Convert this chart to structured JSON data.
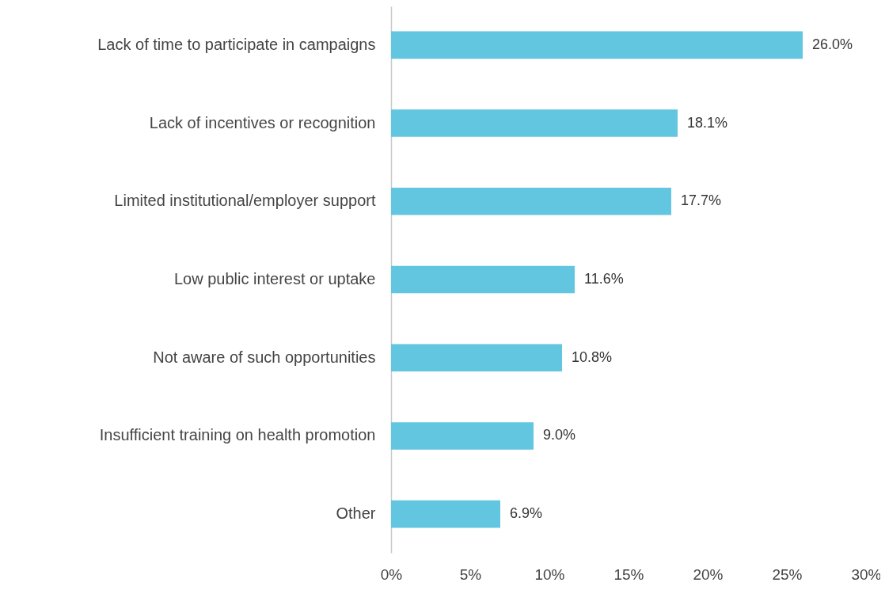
{
  "chart_data": {
    "type": "bar",
    "orientation": "horizontal",
    "categories": [
      "Lack of time to participate in campaigns",
      "Lack of incentives or recognition",
      "Limited institutional/employer support",
      "Low public interest or uptake",
      "Not aware of such opportunities",
      "Insufficient training on health promotion",
      "Other"
    ],
    "values": [
      26.0,
      18.1,
      17.7,
      11.6,
      10.8,
      9.0,
      6.9
    ],
    "value_labels": [
      "26.0%",
      "18.1%",
      "17.7%",
      "11.6%",
      "10.8%",
      "9.0%",
      "6.9%"
    ],
    "color": "#63c6e0",
    "xlim": [
      0,
      30
    ],
    "xticks": [
      {
        "value": 0,
        "label": "0%"
      },
      {
        "value": 5,
        "label": "5%"
      },
      {
        "value": 10,
        "label": "10%"
      },
      {
        "value": 15,
        "label": "15%"
      },
      {
        "value": 20,
        "label": "20%"
      },
      {
        "value": 25,
        "label": "25%"
      },
      {
        "value": 30,
        "label": "30%"
      }
    ],
    "grid": false
  }
}
